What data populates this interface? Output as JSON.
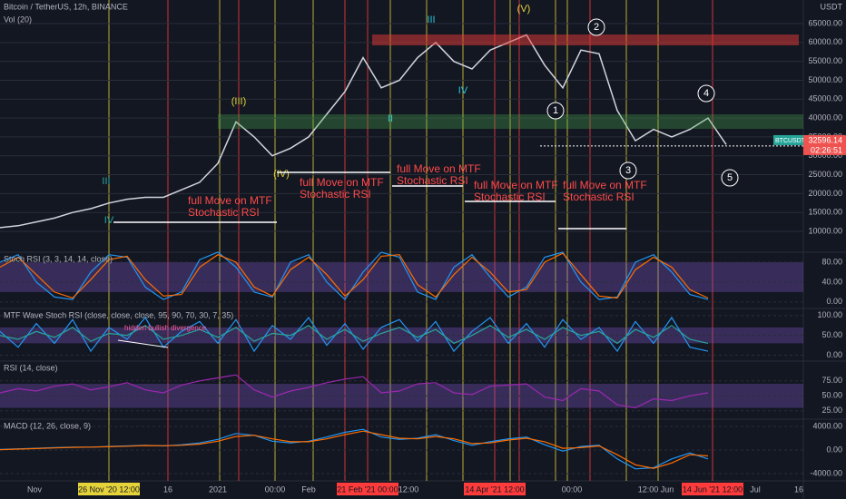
{
  "chart_data": [
    {
      "type": "line",
      "title": "Bitcoin / TetherUS, 12h, BINANCE",
      "subtitle": "Vol (20)",
      "currency": "USDT",
      "symbol": "BTCUSDT",
      "last_price": 32596.14,
      "countdown": "02:26:51",
      "series": [
        {
          "color": "#d1d4dc",
          "values": [
            11000,
            11500,
            12500,
            13500,
            15000,
            16000,
            17500,
            18500,
            19000,
            19000,
            21000,
            23000,
            28000,
            39000,
            35000,
            30000,
            32000,
            35000,
            41000,
            47000,
            56000,
            48000,
            50000,
            56000,
            60000,
            55000,
            53000,
            58000,
            60000,
            62000,
            54000,
            48000,
            58000,
            57000,
            42000,
            34000,
            37000,
            35000,
            37000,
            40000,
            33000
          ]
        }
      ],
      "ylim": [
        5200,
        71250
      ],
      "yticks": [
        {
          "value": 10000,
          "label": "10000.00"
        },
        {
          "value": 15000,
          "label": "15000.00"
        },
        {
          "value": 20000,
          "label": "20000.00"
        },
        {
          "value": 25000,
          "label": "25000.00"
        },
        {
          "value": 30000,
          "label": "30000.00"
        },
        {
          "value": 35000,
          "label": "35000.00"
        },
        {
          "value": 40000,
          "label": "40000.00"
        },
        {
          "value": 45000,
          "label": "45000.00"
        },
        {
          "value": 50000,
          "label": "50000.00"
        },
        {
          "value": 55000,
          "label": "55000.00"
        },
        {
          "value": 60000,
          "label": "60000.00"
        },
        {
          "value": 65000,
          "label": "65000.00"
        }
      ],
      "annotations": [
        "(III)",
        "(IV)",
        "(V)",
        "III",
        "IV",
        "III",
        "IV",
        "II",
        "1",
        "2",
        "3",
        "4",
        "5"
      ],
      "notes": [
        "full Move on MTF Stochastic RSI",
        "full Move on MTF Stochastic RSI",
        "full Move on MTF Stochastic RSI",
        "full Move on MTF Stochastic RSI",
        "full Move on MTF Stochastic RSI"
      ],
      "x_labels": [
        "Nov",
        "26 Nov '20  12:00",
        "16",
        "2021",
        "00:00",
        "Feb",
        "21 Feb '21  00:00",
        "12:00",
        "14 Apr '21  12:00",
        "00:00",
        "12:00",
        "Jun",
        "14 Jun '21  12:00",
        "Jul",
        "16"
      ]
    },
    {
      "type": "line",
      "title": "Stoch RSI (3, 3, 14, 14, close)",
      "band": [
        20,
        80
      ],
      "series": [
        {
          "color": "#2196f3",
          "values": [
            80,
            95,
            40,
            10,
            5,
            60,
            95,
            90,
            30,
            5,
            20,
            85,
            100,
            70,
            20,
            10,
            80,
            95,
            40,
            5,
            60,
            100,
            90,
            20,
            5,
            70,
            95,
            50,
            10,
            30,
            90,
            100,
            40,
            5,
            10,
            80,
            95,
            60,
            15,
            5
          ]
        },
        {
          "color": "#ff6d00",
          "values": [
            70,
            90,
            55,
            20,
            8,
            45,
            85,
            92,
            45,
            12,
            15,
            70,
            95,
            80,
            30,
            12,
            65,
            90,
            55,
            12,
            45,
            92,
            95,
            35,
            10,
            55,
            90,
            60,
            20,
            25,
            80,
            98,
            55,
            12,
            8,
            65,
            90,
            70,
            25,
            8
          ]
        }
      ],
      "ylim": [
        -13,
        100
      ],
      "yticks": [
        {
          "value": 0,
          "label": "0.00"
        },
        {
          "value": 40,
          "label": "40.00"
        },
        {
          "value": 80,
          "label": "80.00"
        }
      ]
    },
    {
      "type": "line",
      "title": "MTF Wave Stoch RSI (close, close, close, 95, 90, 70, 30, 7, 35)",
      "band": [
        30,
        70
      ],
      "note": "hidden bullish divergence",
      "series": [
        {
          "color": "#2196f3",
          "values": [
            60,
            20,
            80,
            30,
            90,
            10,
            70,
            40,
            95,
            20,
            60,
            85,
            30,
            90,
            10,
            75,
            40,
            95,
            25,
            80,
            15,
            70,
            90,
            35,
            85,
            10,
            60,
            95,
            30,
            80,
            20,
            90,
            40,
            70,
            10,
            85,
            30,
            95,
            20,
            10
          ]
        },
        {
          "color": "#26a69a",
          "values": [
            50,
            40,
            60,
            45,
            70,
            35,
            55,
            50,
            75,
            40,
            50,
            65,
            45,
            70,
            35,
            55,
            50,
            75,
            40,
            65,
            35,
            55,
            70,
            45,
            65,
            30,
            50,
            75,
            45,
            65,
            40,
            70,
            50,
            60,
            30,
            65,
            45,
            75,
            40,
            30
          ]
        }
      ],
      "ylim": [
        -15,
        118
      ],
      "yticks": [
        {
          "value": 0,
          "label": "0.00"
        },
        {
          "value": 50,
          "label": "50.00"
        },
        {
          "value": 100,
          "label": "100.00"
        }
      ]
    },
    {
      "type": "line",
      "title": "RSI (14, close)",
      "band": [
        30,
        70
      ],
      "series": [
        {
          "color": "#9c27b0",
          "values": [
            55,
            62,
            58,
            66,
            70,
            60,
            65,
            72,
            60,
            55,
            68,
            75,
            80,
            85,
            60,
            48,
            58,
            64,
            72,
            78,
            82,
            55,
            58,
            70,
            72,
            55,
            52,
            66,
            68,
            70,
            48,
            42,
            62,
            58,
            35,
            30,
            45,
            42,
            50,
            55
          ]
        }
      ],
      "ylim": [
        11,
        108
      ],
      "yticks": [
        {
          "value": 25,
          "label": "25.00"
        },
        {
          "value": 50,
          "label": "50.00"
        },
        {
          "value": 75,
          "label": "75.00"
        }
      ]
    },
    {
      "type": "line",
      "title": "MACD (12, 26, close, 9)",
      "series": [
        {
          "color": "#2196f3",
          "values": [
            100,
            200,
            300,
            400,
            500,
            500,
            600,
            700,
            800,
            700,
            900,
            1200,
            1800,
            2800,
            2500,
            1500,
            1200,
            1500,
            2200,
            3000,
            3500,
            2200,
            1800,
            2000,
            2600,
            1600,
            800,
            1400,
            1900,
            2200,
            900,
            -200,
            600,
            800,
            -1500,
            -3200,
            -3000,
            -1500,
            -500,
            -1500
          ]
        },
        {
          "color": "#ff6d00",
          "values": [
            50,
            150,
            250,
            350,
            450,
            500,
            550,
            650,
            750,
            720,
            800,
            1000,
            1500,
            2300,
            2500,
            1900,
            1400,
            1400,
            1900,
            2600,
            3200,
            2600,
            2000,
            1900,
            2300,
            1900,
            1100,
            1200,
            1700,
            2000,
            1400,
            300,
            400,
            700,
            -800,
            -2500,
            -3100,
            -2200,
            -800,
            -1000
          ]
        }
      ],
      "ylim": [
        -4920,
        5230
      ],
      "yticks": [
        {
          "value": -4000,
          "label": "-4000.00"
        },
        {
          "value": 0,
          "label": "0.00"
        },
        {
          "value": 4000,
          "label": "4000.00"
        }
      ]
    }
  ]
}
